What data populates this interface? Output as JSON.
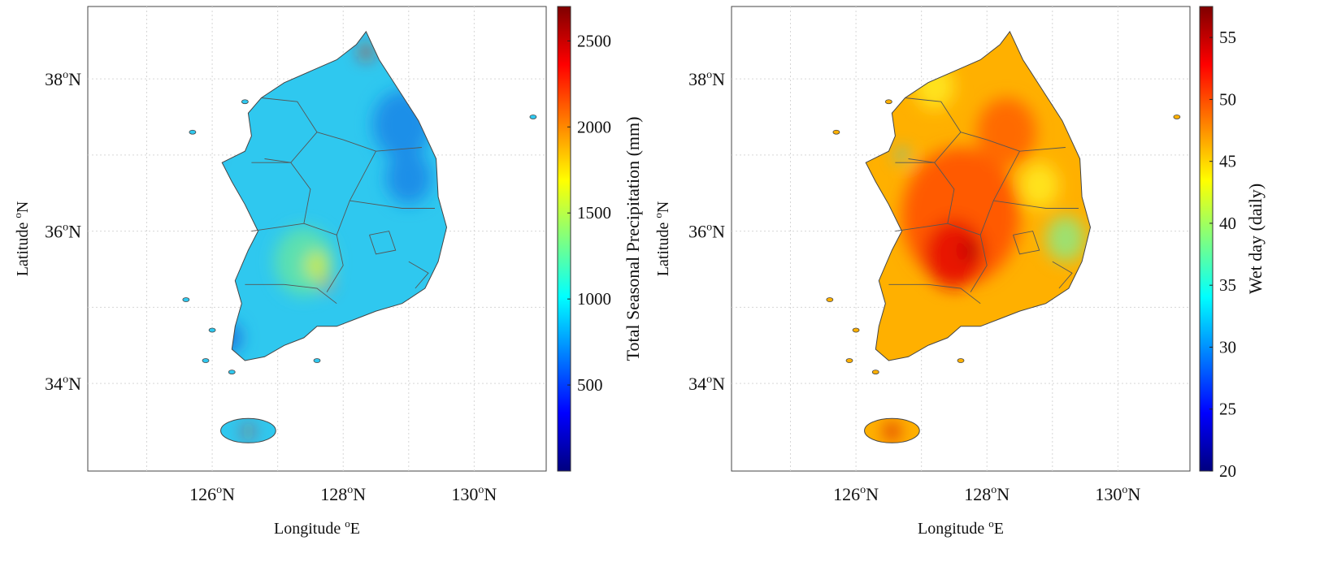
{
  "maps": [
    {
      "id": "precip",
      "xlabel": "Longitude",
      "xlabel_sup": "o",
      "xlabel_tail": "E",
      "ylabel": "Latitude",
      "ylabel_sup": "o",
      "ylabel_tail": "N",
      "x_ticks": [
        {
          "value": 126,
          "num": "126",
          "sup": "o",
          "dir": "N"
        },
        {
          "value": 128,
          "num": "128",
          "sup": "o",
          "dir": "N"
        },
        {
          "value": 130,
          "num": "130",
          "sup": "o",
          "dir": "N"
        }
      ],
      "y_ticks": [
        {
          "value": 38,
          "num": "38",
          "sup": "o",
          "dir": "N"
        },
        {
          "value": 36,
          "num": "36",
          "sup": "o",
          "dir": "N"
        },
        {
          "value": 34,
          "num": "34",
          "sup": "o",
          "dir": "N"
        }
      ],
      "colorbar": {
        "label": "Total Seasonal Precipitation (mm)",
        "min": 0,
        "max": 2700,
        "ticks": [
          {
            "value": 500,
            "label": "500"
          },
          {
            "value": 1000,
            "label": "1000"
          },
          {
            "value": 1500,
            "label": "1500"
          },
          {
            "value": 2000,
            "label": "2000"
          },
          {
            "value": 2500,
            "label": "2500"
          }
        ]
      },
      "fill_color": "#2fc8ef",
      "highlights": [
        {
          "color": "#5be0b0",
          "lon": 127.4,
          "lat": 35.6,
          "r": 0.45
        },
        {
          "color": "#c6e84a",
          "lon": 127.6,
          "lat": 35.55,
          "r": 0.18
        },
        {
          "color": "#ff6a00",
          "lon": 127.75,
          "lat": 35.3,
          "r": 0.07
        },
        {
          "color": "#1e8fe8",
          "lon": 128.9,
          "lat": 37.4,
          "r": 0.45
        },
        {
          "color": "#1e8fe8",
          "lon": 129.0,
          "lat": 36.7,
          "r": 0.35
        },
        {
          "color": "#1c78e0",
          "lon": 126.25,
          "lat": 34.6,
          "r": 0.2
        },
        {
          "color": "#e02010",
          "lon": 128.35,
          "lat": 38.35,
          "r": 0.09
        },
        {
          "color": "#e02010",
          "lon": 126.55,
          "lat": 33.37,
          "r": 0.07
        },
        {
          "color": "#0a30d8",
          "lon": 125.95,
          "lat": 37.0,
          "r": 0.08
        }
      ]
    },
    {
      "id": "wetday",
      "xlabel": "Longitude",
      "xlabel_sup": "o",
      "xlabel_tail": "E",
      "ylabel": "Latitude",
      "ylabel_sup": "o",
      "ylabel_tail": "N",
      "x_ticks": [
        {
          "value": 126,
          "num": "126",
          "sup": "o",
          "dir": "N"
        },
        {
          "value": 128,
          "num": "128",
          "sup": "o",
          "dir": "N"
        },
        {
          "value": 130,
          "num": "130",
          "sup": "o",
          "dir": "N"
        }
      ],
      "y_ticks": [
        {
          "value": 38,
          "num": "38",
          "sup": "o",
          "dir": "N"
        },
        {
          "value": 36,
          "num": "36",
          "sup": "o",
          "dir": "N"
        },
        {
          "value": 34,
          "num": "34",
          "sup": "o",
          "dir": "N"
        }
      ],
      "colorbar": {
        "label": "Wet day (daily)",
        "min": 20,
        "max": 57.5,
        "ticks": [
          {
            "value": 20,
            "label": "20"
          },
          {
            "value": 25,
            "label": "25"
          },
          {
            "value": 30,
            "label": "30"
          },
          {
            "value": 35,
            "label": "35"
          },
          {
            "value": 40,
            "label": "40"
          },
          {
            "value": 45,
            "label": "45"
          },
          {
            "value": 50,
            "label": "50"
          },
          {
            "value": 55,
            "label": "55"
          }
        ]
      },
      "fill_color": "#ffb000",
      "highlights": [
        {
          "color": "#ff5a00",
          "lon": 127.6,
          "lat": 36.2,
          "r": 0.9
        },
        {
          "color": "#e81800",
          "lon": 127.5,
          "lat": 35.7,
          "r": 0.45
        },
        {
          "color": "#c00000",
          "lon": 127.75,
          "lat": 35.75,
          "r": 0.15
        },
        {
          "color": "#ff6a00",
          "lon": 128.3,
          "lat": 37.3,
          "r": 0.45
        },
        {
          "color": "#9ee070",
          "lon": 129.2,
          "lat": 35.9,
          "r": 0.3
        },
        {
          "color": "#ffe21a",
          "lon": 128.8,
          "lat": 36.6,
          "r": 0.3
        },
        {
          "color": "#3ad0e8",
          "lon": 126.7,
          "lat": 37.0,
          "r": 0.08
        },
        {
          "color": "#1c78e0",
          "lon": 125.95,
          "lat": 37.0,
          "r": 0.05
        },
        {
          "color": "#d01000",
          "lon": 126.55,
          "lat": 33.37,
          "r": 0.1
        },
        {
          "color": "#ffe21a",
          "lon": 127.2,
          "lat": 37.9,
          "r": 0.3
        }
      ]
    }
  ]
}
